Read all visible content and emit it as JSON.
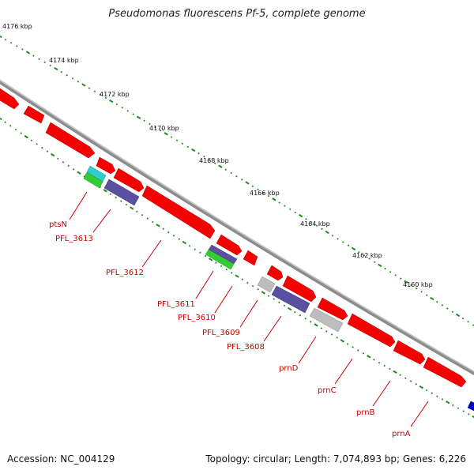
{
  "title": "Pseudomonas fluorescens Pf-5, complete genome",
  "footer": {
    "accession": "Accession: NC_004129",
    "summary": "Topology: circular; Length: 7,074,893 bp; Genes: 6,226"
  },
  "kbp_labels": [
    "4176 kbp",
    "4174 kbp",
    "4172 kbp",
    "4170 kbp",
    "4168 kbp",
    "4166 kbp",
    "4164 kbp",
    "4162 kbp",
    "4160 kbp"
  ],
  "gene_labels": [
    "ptsN",
    "PFL_3613",
    "PFL_3612",
    "PFL_3611",
    "PFL_3610",
    "PFL_3609",
    "PFL_3608",
    "prnD",
    "prnC",
    "prnB",
    "prnA"
  ],
  "colors": {
    "backbone": "#8c8c8c",
    "feature_red": "#f50000",
    "feature_purple": "#5a4fa0",
    "feature_green": "#33cc33",
    "feature_cyan": "#33cccc",
    "feature_grey": "#bdbdbd",
    "feature_blue": "#0000cc",
    "tick_green": "#1a8a1a",
    "label_red": "#cc0000"
  }
}
